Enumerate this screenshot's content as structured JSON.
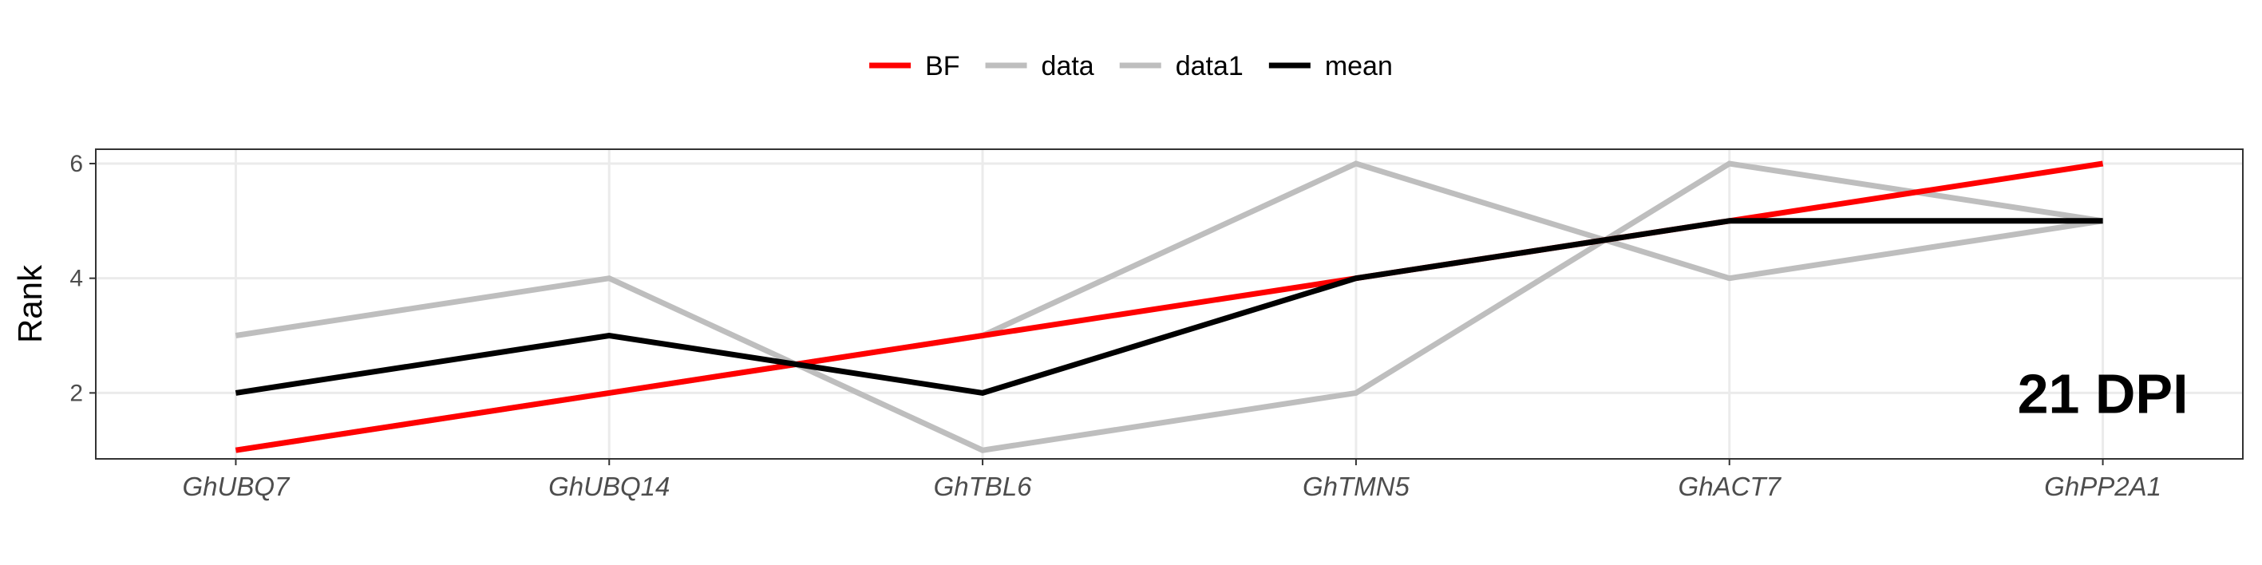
{
  "chart_data": {
    "type": "line",
    "categories": [
      "GhUBQ7",
      "GhUBQ14",
      "GhTBL6",
      "GhTMN5",
      "GhACT7",
      "GhPP2A1"
    ],
    "ylabel": "Rank",
    "ylim": [
      0.85,
      6.25
    ],
    "yticks": [
      2,
      4,
      6
    ],
    "grid": true,
    "legend_position": "top",
    "annotation": "21 DPI",
    "series": [
      {
        "name": "data",
        "color": "#bebebe",
        "values": [
          3,
          4,
          1,
          2,
          6,
          5
        ]
      },
      {
        "name": "data1",
        "color": "#bebebe",
        "values": [
          1,
          2,
          3,
          6,
          4,
          5
        ]
      },
      {
        "name": "BF",
        "color": "#ff0000",
        "values": [
          1,
          2,
          3,
          4,
          5,
          6
        ]
      },
      {
        "name": "mean",
        "color": "#000000",
        "values": [
          2,
          3,
          2,
          4,
          5,
          5
        ]
      }
    ],
    "legend_order": [
      "BF",
      "data",
      "data1",
      "mean"
    ]
  }
}
